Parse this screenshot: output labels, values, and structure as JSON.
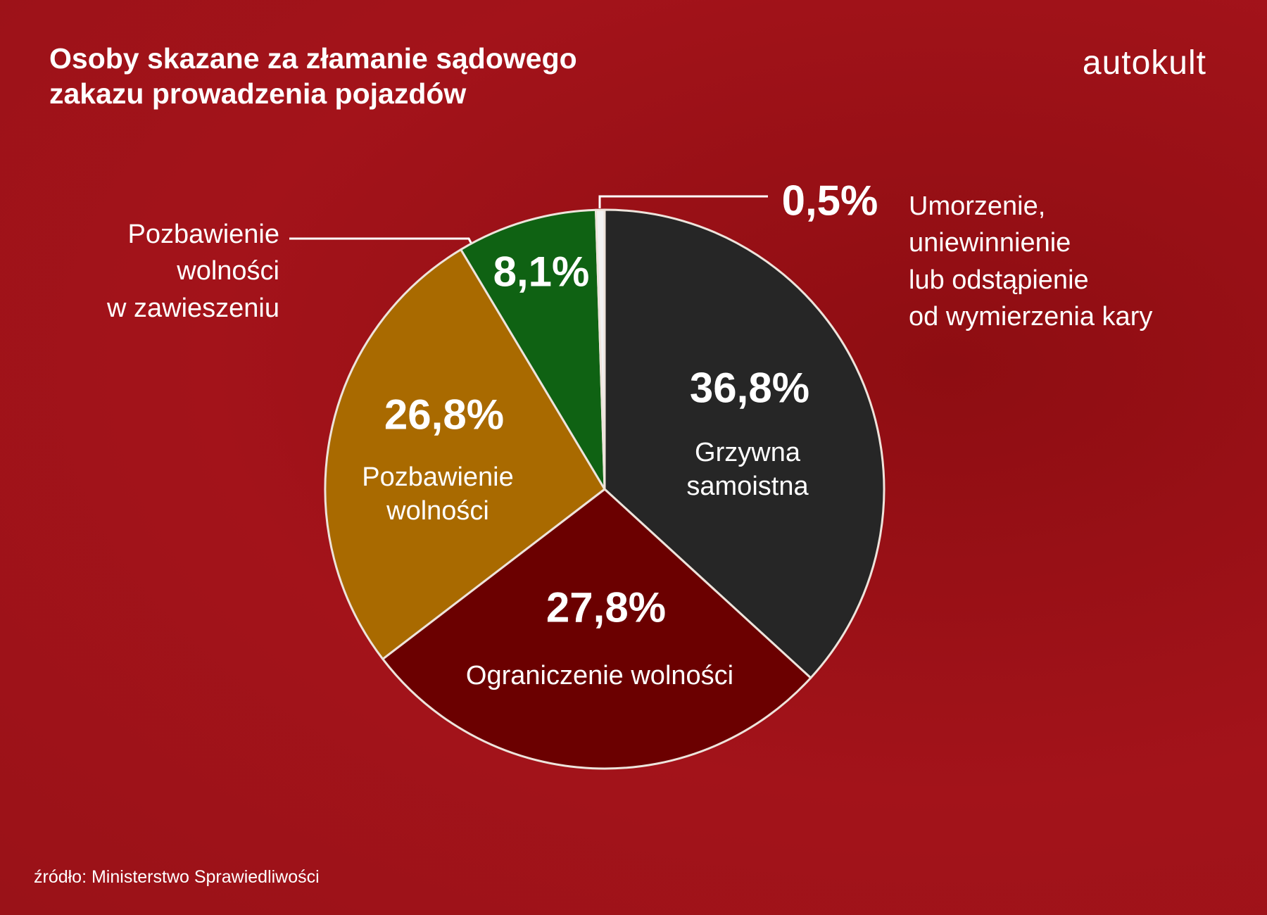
{
  "chart_data": {
    "type": "pie",
    "title": "Osoby skazane za złamanie sądowego\nzakazu prowadzenia pojazdów",
    "brand": "autokult",
    "source": "źródło: Ministerstwo Sprawiedliwości",
    "categories": [
      "Grzywna\nsamoistna",
      "Ograniczenie wolności",
      "Pozbawienie\nwolności",
      "Pozbawienie\nwolności\nw zawieszeniu",
      "Umorzenie,\nuniewinnienie\nlub odstąpienie\nod wymierzenia kary"
    ],
    "values": [
      36.8,
      27.8,
      26.8,
      8.1,
      0.5
    ],
    "value_labels": [
      "36,8%",
      "27,8%",
      "26,8%",
      "8,1%",
      "0,5%"
    ],
    "colors": [
      "#262626",
      "#6b0000",
      "#a96a00",
      "#0f6213",
      "#f2f2f2"
    ]
  }
}
